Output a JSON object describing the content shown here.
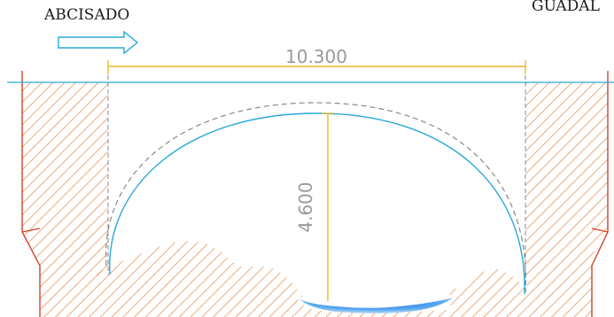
{
  "labels": {
    "abscissa": "ABCISADO",
    "right_cut": "GUADAL"
  },
  "dimensions": {
    "span": "10.300",
    "rise": "4.600"
  },
  "colors": {
    "hatch": "#e0803a",
    "section_edge": "#d4422a",
    "water_line": "#2aa8d8",
    "dimension": "#e8b828",
    "dashed_profile": "#8a8a8a",
    "water": "#2a7fe0"
  },
  "icons": {
    "arrow": "right-arrow-icon"
  }
}
